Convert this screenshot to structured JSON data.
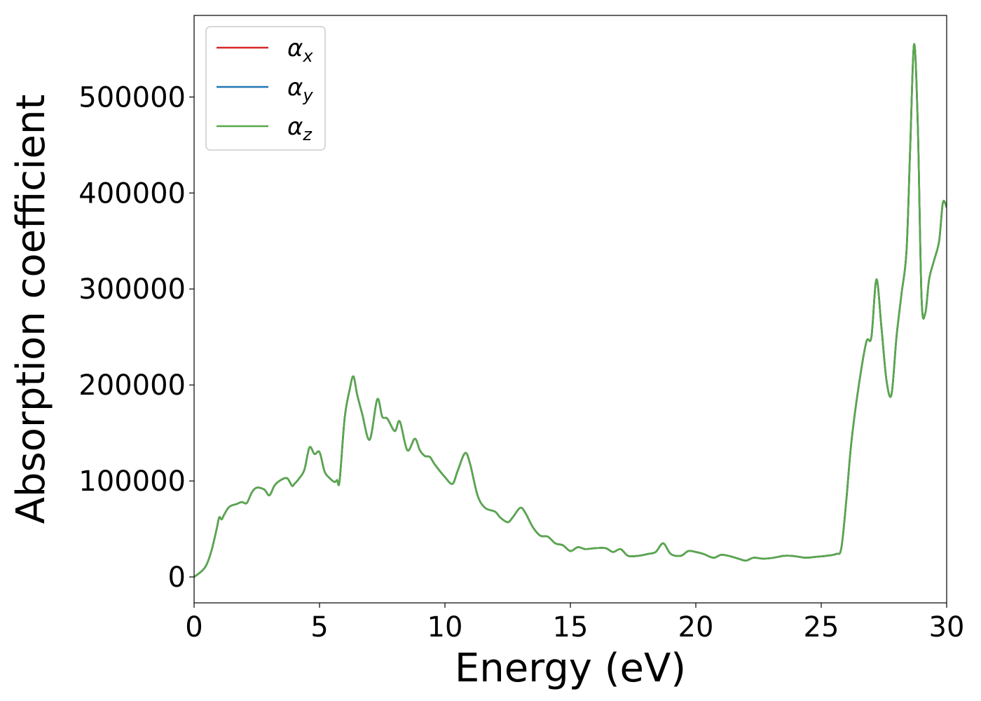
{
  "chart_data": {
    "type": "line",
    "title": "",
    "xlabel": "Energy (eV)",
    "ylabel": "Absorption coefficient",
    "xlim": [
      0,
      30
    ],
    "ylim": [
      -27000,
      585000
    ],
    "xticks": [
      0,
      5,
      10,
      15,
      20,
      25,
      30
    ],
    "yticks": [
      0,
      100000,
      200000,
      300000,
      400000,
      500000
    ],
    "grid": false,
    "legend_position": "top-left",
    "series": [
      {
        "name": "αx",
        "base": "α",
        "sub": "x",
        "color": "#d62728",
        "x": [
          0,
          0.3,
          0.5,
          0.7,
          0.9,
          1.0,
          1.1,
          1.2,
          1.4,
          1.7,
          1.9,
          2.1,
          2.3,
          2.5,
          2.8,
          3.0,
          3.2,
          3.4,
          3.7,
          3.9,
          4.0,
          4.2,
          4.4,
          4.6,
          4.8,
          5.0,
          5.2,
          5.4,
          5.6,
          5.7,
          5.8,
          6.0,
          6.2,
          6.35,
          6.5,
          6.7,
          7.0,
          7.3,
          7.5,
          7.7,
          8.0,
          8.2,
          8.5,
          8.8,
          9.0,
          9.2,
          9.4,
          9.6,
          10.0,
          10.3,
          10.5,
          10.8,
          11.0,
          11.3,
          11.6,
          12.0,
          12.2,
          12.5,
          12.7,
          13.0,
          13.2,
          13.5,
          13.8,
          14.1,
          14.4,
          14.7,
          15.0,
          15.3,
          15.6,
          16.0,
          16.4,
          16.7,
          17.0,
          17.3,
          17.7,
          18.1,
          18.4,
          18.7,
          19.0,
          19.4,
          19.7,
          20.0,
          20.3,
          20.7,
          21.0,
          21.3,
          21.7,
          22.0,
          22.3,
          22.7,
          23.1,
          23.5,
          23.8,
          24.1,
          24.4,
          24.8,
          25.2,
          25.6,
          25.8,
          26.0,
          26.2,
          26.5,
          26.8,
          27.0,
          27.2,
          27.4,
          27.6,
          27.8,
          28.0,
          28.2,
          28.4,
          28.55,
          28.7,
          28.85,
          29.0,
          29.15,
          29.3,
          29.5,
          29.7,
          29.85,
          30.0
        ],
        "y": [
          0,
          6000,
          13000,
          28000,
          50000,
          62000,
          60000,
          65000,
          73000,
          76000,
          78000,
          77000,
          88000,
          93000,
          91000,
          85000,
          95000,
          100000,
          103000,
          95000,
          97000,
          103000,
          112000,
          135000,
          128000,
          130000,
          110000,
          103000,
          99000,
          101000,
          100000,
          165000,
          195000,
          209000,
          190000,
          170000,
          143000,
          185000,
          167000,
          165000,
          152000,
          162000,
          132000,
          144000,
          132000,
          126000,
          125000,
          117000,
          104000,
          97000,
          110000,
          129000,
          118000,
          85000,
          72000,
          68000,
          62000,
          57000,
          62000,
          72000,
          67000,
          52000,
          43000,
          42000,
          35000,
          33000,
          27000,
          31000,
          29000,
          30000,
          30000,
          26000,
          29000,
          22000,
          22000,
          24000,
          26000,
          35000,
          24000,
          22000,
          27000,
          26000,
          24000,
          20000,
          23000,
          22000,
          19000,
          17000,
          20000,
          19000,
          20000,
          22000,
          22000,
          21000,
          20000,
          21000,
          22000,
          24000,
          30000,
          80000,
          140000,
          200000,
          245000,
          250000,
          310000,
          260000,
          205000,
          190000,
          250000,
          295000,
          340000,
          450000,
          555000,
          470000,
          290000,
          275000,
          310000,
          330000,
          350000,
          390000,
          385000
        ]
      },
      {
        "name": "αy",
        "base": "α",
        "sub": "y",
        "color": "#1f77b4",
        "x": [
          0,
          0.3,
          0.5,
          0.7,
          0.9,
          1.0,
          1.1,
          1.2,
          1.4,
          1.7,
          1.9,
          2.1,
          2.3,
          2.5,
          2.8,
          3.0,
          3.2,
          3.4,
          3.7,
          3.9,
          4.0,
          4.2,
          4.4,
          4.6,
          4.8,
          5.0,
          5.2,
          5.4,
          5.6,
          5.7,
          5.8,
          6.0,
          6.2,
          6.35,
          6.5,
          6.7,
          7.0,
          7.3,
          7.5,
          7.7,
          8.0,
          8.2,
          8.5,
          8.8,
          9.0,
          9.2,
          9.4,
          9.6,
          10.0,
          10.3,
          10.5,
          10.8,
          11.0,
          11.3,
          11.6,
          12.0,
          12.2,
          12.5,
          12.7,
          13.0,
          13.2,
          13.5,
          13.8,
          14.1,
          14.4,
          14.7,
          15.0,
          15.3,
          15.6,
          16.0,
          16.4,
          16.7,
          17.0,
          17.3,
          17.7,
          18.1,
          18.4,
          18.7,
          19.0,
          19.4,
          19.7,
          20.0,
          20.3,
          20.7,
          21.0,
          21.3,
          21.7,
          22.0,
          22.3,
          22.7,
          23.1,
          23.5,
          23.8,
          24.1,
          24.4,
          24.8,
          25.2,
          25.6,
          25.8,
          26.0,
          26.2,
          26.5,
          26.8,
          27.0,
          27.2,
          27.4,
          27.6,
          27.8,
          28.0,
          28.2,
          28.4,
          28.55,
          28.7,
          28.85,
          29.0,
          29.15,
          29.3,
          29.5,
          29.7,
          29.85,
          30.0
        ],
        "y": [
          0,
          6000,
          13000,
          28000,
          50000,
          62000,
          60000,
          65000,
          73000,
          76000,
          78000,
          77000,
          88000,
          93000,
          91000,
          85000,
          95000,
          100000,
          103000,
          95000,
          97000,
          103000,
          112000,
          135000,
          128000,
          130000,
          110000,
          103000,
          99000,
          101000,
          100000,
          165000,
          195000,
          209000,
          190000,
          170000,
          143000,
          185000,
          167000,
          165000,
          152000,
          162000,
          132000,
          144000,
          132000,
          126000,
          125000,
          117000,
          104000,
          97000,
          110000,
          129000,
          118000,
          85000,
          72000,
          68000,
          62000,
          57000,
          62000,
          72000,
          67000,
          52000,
          43000,
          42000,
          35000,
          33000,
          27000,
          31000,
          29000,
          30000,
          30000,
          26000,
          29000,
          22000,
          22000,
          24000,
          26000,
          35000,
          24000,
          22000,
          27000,
          26000,
          24000,
          20000,
          23000,
          22000,
          19000,
          17000,
          20000,
          19000,
          20000,
          22000,
          22000,
          21000,
          20000,
          21000,
          22000,
          24000,
          30000,
          80000,
          140000,
          200000,
          245000,
          250000,
          310000,
          260000,
          205000,
          190000,
          250000,
          295000,
          340000,
          450000,
          555000,
          470000,
          290000,
          275000,
          310000,
          330000,
          350000,
          390000,
          385000
        ]
      },
      {
        "name": "αz",
        "base": "α",
        "sub": "z",
        "color": "#59a84b",
        "x": [
          0,
          0.3,
          0.5,
          0.7,
          0.9,
          1.0,
          1.1,
          1.2,
          1.4,
          1.7,
          1.9,
          2.1,
          2.3,
          2.5,
          2.8,
          3.0,
          3.2,
          3.4,
          3.7,
          3.9,
          4.0,
          4.2,
          4.4,
          4.6,
          4.8,
          5.0,
          5.2,
          5.4,
          5.6,
          5.7,
          5.8,
          6.0,
          6.2,
          6.35,
          6.5,
          6.7,
          7.0,
          7.3,
          7.5,
          7.7,
          8.0,
          8.2,
          8.5,
          8.8,
          9.0,
          9.2,
          9.4,
          9.6,
          10.0,
          10.3,
          10.5,
          10.8,
          11.0,
          11.3,
          11.6,
          12.0,
          12.2,
          12.5,
          12.7,
          13.0,
          13.2,
          13.5,
          13.8,
          14.1,
          14.4,
          14.7,
          15.0,
          15.3,
          15.6,
          16.0,
          16.4,
          16.7,
          17.0,
          17.3,
          17.7,
          18.1,
          18.4,
          18.7,
          19.0,
          19.4,
          19.7,
          20.0,
          20.3,
          20.7,
          21.0,
          21.3,
          21.7,
          22.0,
          22.3,
          22.7,
          23.1,
          23.5,
          23.8,
          24.1,
          24.4,
          24.8,
          25.2,
          25.6,
          25.8,
          26.0,
          26.2,
          26.5,
          26.8,
          27.0,
          27.2,
          27.4,
          27.6,
          27.8,
          28.0,
          28.2,
          28.4,
          28.55,
          28.7,
          28.85,
          29.0,
          29.15,
          29.3,
          29.5,
          29.7,
          29.85,
          30.0
        ],
        "y": [
          0,
          6000,
          13000,
          28000,
          50000,
          62000,
          60000,
          65000,
          73000,
          76000,
          78000,
          77000,
          88000,
          93000,
          91000,
          85000,
          95000,
          100000,
          103000,
          95000,
          97000,
          103000,
          112000,
          135000,
          128000,
          130000,
          110000,
          103000,
          99000,
          101000,
          100000,
          165000,
          195000,
          209000,
          190000,
          170000,
          143000,
          185000,
          167000,
          165000,
          152000,
          162000,
          132000,
          144000,
          132000,
          126000,
          125000,
          117000,
          104000,
          97000,
          110000,
          129000,
          118000,
          85000,
          72000,
          68000,
          62000,
          57000,
          62000,
          72000,
          67000,
          52000,
          43000,
          42000,
          35000,
          33000,
          27000,
          31000,
          29000,
          30000,
          30000,
          26000,
          29000,
          22000,
          22000,
          24000,
          26000,
          35000,
          24000,
          22000,
          27000,
          26000,
          24000,
          20000,
          23000,
          22000,
          19000,
          17000,
          20000,
          19000,
          20000,
          22000,
          22000,
          21000,
          20000,
          21000,
          22000,
          24000,
          30000,
          80000,
          140000,
          200000,
          245000,
          250000,
          310000,
          260000,
          205000,
          190000,
          250000,
          295000,
          340000,
          450000,
          555000,
          470000,
          290000,
          275000,
          310000,
          330000,
          350000,
          390000,
          385000
        ]
      }
    ]
  }
}
